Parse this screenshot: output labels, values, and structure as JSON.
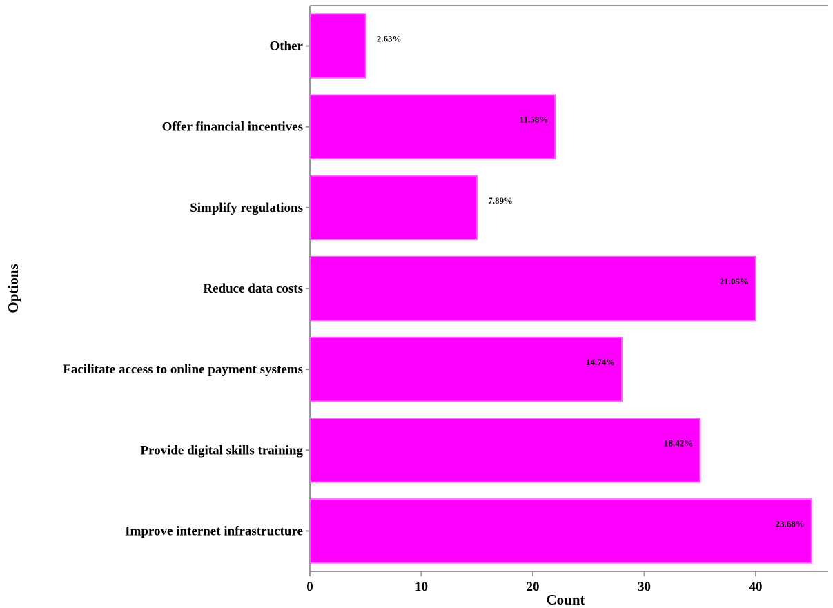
{
  "chart_data": {
    "type": "bar",
    "orientation": "horizontal",
    "categories": [
      "Other",
      "Offer financial incentives",
      "Simplify regulations",
      "Reduce data costs",
      "Facilitate access to online payment systems",
      "Provide digital skills training",
      "Improve internet infrastructure"
    ],
    "values": [
      5,
      22,
      15,
      40,
      28,
      35,
      45
    ],
    "percent_labels": [
      "2.63%",
      "11.58%",
      "7.89%",
      "21.05%",
      "14.74%",
      "18.42%",
      "23.68%"
    ],
    "xlabel": "Count",
    "ylabel": "Options",
    "xlim": [
      0,
      46.5
    ],
    "xticks": [
      0,
      10,
      20,
      30,
      40
    ],
    "grid": false,
    "bar_color": "#ff00ff"
  }
}
